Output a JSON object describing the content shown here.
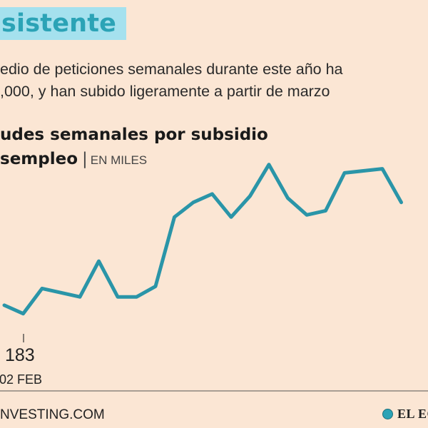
{
  "header": {
    "title": "sistente"
  },
  "intro": {
    "line1": "edio de peticiones semanales durante este año ha",
    "line2": ",000, y han subido ligeramente a partir de marzo"
  },
  "chart_title": {
    "line1": "udes semanales por subsidio",
    "line2": "sempleo",
    "separator": "|",
    "unit": "EN MILES"
  },
  "annotation": {
    "value": "183",
    "date": "02 FEB"
  },
  "footer": {
    "source": "NVESTING.COM",
    "brand": "EL EC"
  },
  "colors": {
    "background": "#fbe6d4",
    "line": "#2a95a8",
    "accent": "#a5e1ee",
    "headline": "#2ba3b6"
  },
  "chart_data": {
    "type": "line",
    "series": [
      {
        "values": [
          187,
          183,
          195,
          193,
          191,
          208,
          191,
          191,
          196,
          229,
          236,
          240,
          229,
          239,
          254,
          238,
          230,
          232,
          250,
          251,
          252,
          236
        ]
      }
    ],
    "ylim": [
      170,
      260
    ],
    "grid": false,
    "annotations": [
      {
        "index": 1,
        "text": "183"
      }
    ]
  }
}
